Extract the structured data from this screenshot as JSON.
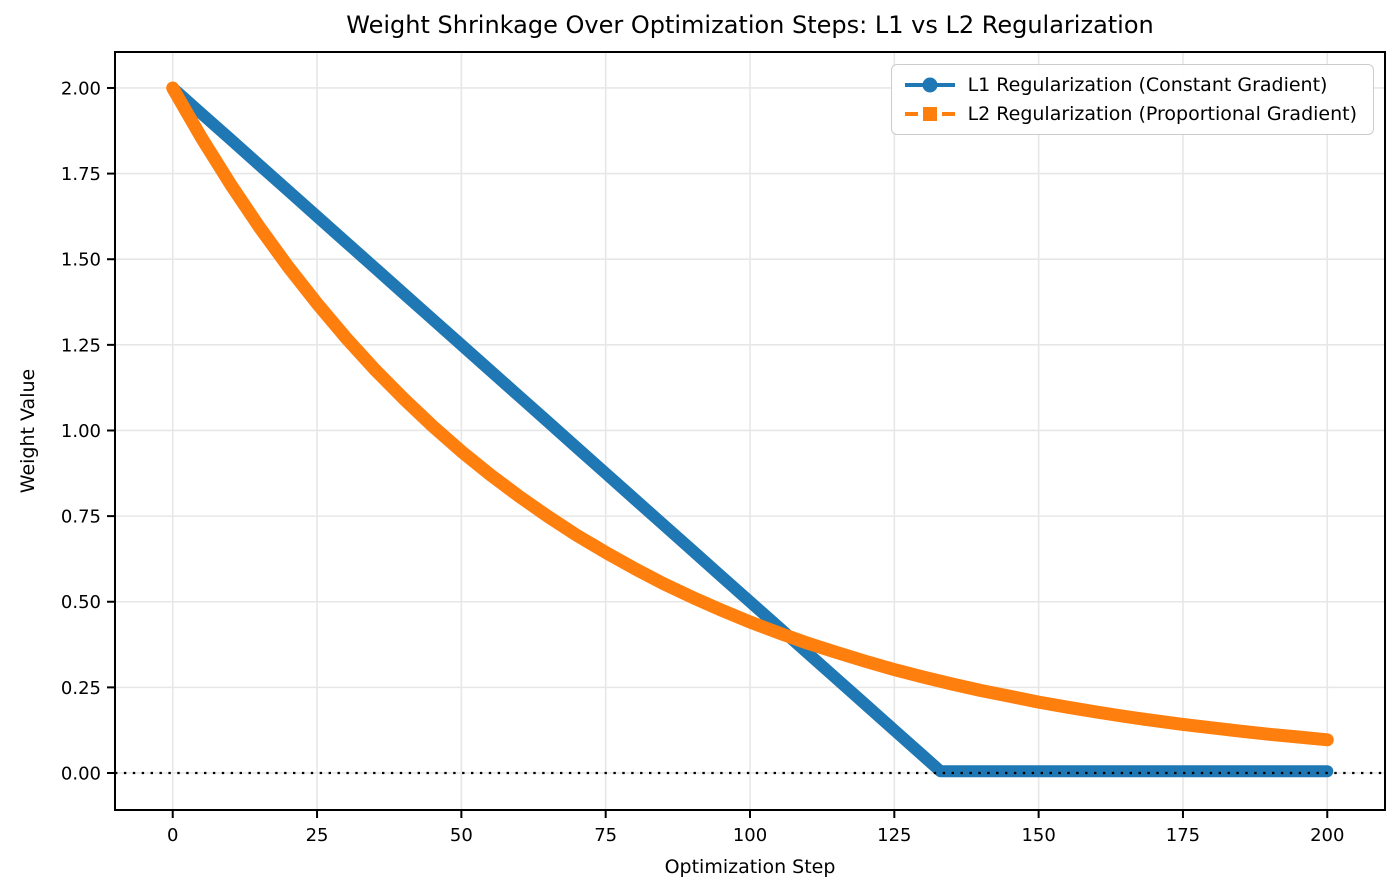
{
  "chart_data": {
    "type": "line",
    "title": "Weight Shrinkage Over Optimization Steps: L1 vs L2 Regularization",
    "xlabel": "Optimization Step",
    "ylabel": "Weight Value",
    "xlim": [
      -10,
      210
    ],
    "ylim": [
      -0.108,
      2.105
    ],
    "xtick_values": [
      0,
      25,
      50,
      75,
      100,
      125,
      150,
      175,
      200
    ],
    "xtick_labels": [
      "0",
      "25",
      "50",
      "75",
      "100",
      "125",
      "150",
      "175",
      "200"
    ],
    "ytick_values": [
      0,
      0.25,
      0.5,
      0.75,
      1.0,
      1.25,
      1.5,
      1.75,
      2.0
    ],
    "ytick_labels": [
      "0.00",
      "0.25",
      "0.50",
      "0.75",
      "1.00",
      "1.25",
      "1.50",
      "1.75",
      "2.00"
    ],
    "grid": true,
    "legend_position": "upper right",
    "colors": {
      "background": "#ffffff",
      "grid": "#e7e7e7",
      "spine": "#000000",
      "text": "#000000",
      "zero_line": "#000000"
    },
    "zero_line": {
      "y": 0,
      "style": "dotted"
    },
    "series": [
      {
        "name": "L1 Regularization (Constant Gradient)",
        "color": "#1f77b4",
        "marker": "circle",
        "line_style": "solid",
        "band_width": 12,
        "x": [
          0,
          5,
          10,
          15,
          20,
          25,
          30,
          35,
          40,
          45,
          50,
          55,
          60,
          65,
          70,
          75,
          80,
          85,
          90,
          95,
          100,
          105,
          110,
          115,
          120,
          125,
          130,
          133,
          135,
          140,
          145,
          150,
          155,
          160,
          165,
          170,
          175,
          180,
          185,
          190,
          195,
          200
        ],
        "y": [
          2.0,
          1.925,
          1.85,
          1.775,
          1.7,
          1.625,
          1.55,
          1.475,
          1.4,
          1.325,
          1.25,
          1.175,
          1.1,
          1.025,
          0.95,
          0.875,
          0.8,
          0.725,
          0.65,
          0.575,
          0.5,
          0.425,
          0.35,
          0.275,
          0.2,
          0.125,
          0.05,
          0.005,
          0.005,
          0.005,
          0.005,
          0.005,
          0.005,
          0.005,
          0.005,
          0.005,
          0.005,
          0.005,
          0.005,
          0.005,
          0.005,
          0.005
        ]
      },
      {
        "name": "L2 Regularization (Proportional Gradient)",
        "color": "#ff7f0e",
        "marker": "square",
        "line_style": "dashed",
        "band_width": 13,
        "x": [
          0,
          5,
          10,
          15,
          20,
          25,
          30,
          35,
          40,
          45,
          50,
          55,
          60,
          65,
          70,
          75,
          80,
          85,
          90,
          95,
          100,
          105,
          110,
          115,
          120,
          125,
          130,
          135,
          140,
          145,
          150,
          155,
          160,
          165,
          170,
          175,
          180,
          185,
          190,
          195,
          200
        ],
        "y": [
          2.0,
          1.854,
          1.719,
          1.594,
          1.478,
          1.371,
          1.271,
          1.178,
          1.093,
          1.013,
          0.939,
          0.871,
          0.808,
          0.749,
          0.694,
          0.644,
          0.597,
          0.553,
          0.513,
          0.476,
          0.441,
          0.409,
          0.379,
          0.352,
          0.326,
          0.302,
          0.28,
          0.26,
          0.241,
          0.224,
          0.207,
          0.192,
          0.178,
          0.165,
          0.153,
          0.142,
          0.132,
          0.122,
          0.113,
          0.105,
          0.097
        ]
      }
    ]
  }
}
